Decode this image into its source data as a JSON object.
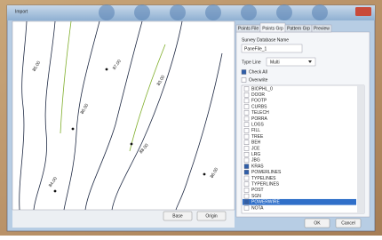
{
  "window": {
    "title": "Import"
  },
  "map": {
    "labels": [
      "85.00",
      "87.00",
      "86.00",
      "88.00",
      "84.00",
      "86.00",
      "83.00"
    ],
    "buttons": [
      "Base",
      "Origin"
    ]
  },
  "tabs": [
    "Points File",
    "Points Grp",
    "Pattern Grp",
    "Preview"
  ],
  "active_tab": 1,
  "form": {
    "survey_label": "Survey Database Name",
    "survey_value": "PaneFile_1",
    "type_label": "Type Line",
    "type_value": "Multi",
    "check_all": {
      "label": "Check All",
      "checked": true
    },
    "overwrite": {
      "label": "Overwrite",
      "checked": false
    }
  },
  "list": {
    "items": [
      {
        "label": "BIOPHL_0",
        "checked": false
      },
      {
        "label": "DOOR",
        "checked": false
      },
      {
        "label": "FOOTP",
        "checked": false
      },
      {
        "label": "CURBS",
        "checked": false
      },
      {
        "label": "TELECH",
        "checked": false
      },
      {
        "label": "PORRA",
        "checked": false
      },
      {
        "label": "LOGS",
        "checked": false
      },
      {
        "label": "FILL",
        "checked": false
      },
      {
        "label": "TREE",
        "checked": false
      },
      {
        "label": "BEH",
        "checked": false
      },
      {
        "label": "JCE",
        "checked": false
      },
      {
        "label": "LRG",
        "checked": false
      },
      {
        "label": "JBG",
        "checked": false
      },
      {
        "label": "KRAS",
        "checked": true
      },
      {
        "label": "POWERLINES",
        "checked": true
      },
      {
        "label": "TYPELINES",
        "checked": false
      },
      {
        "label": "TYPERLINES",
        "checked": false
      },
      {
        "label": "POST",
        "checked": false
      },
      {
        "label": "SGN",
        "checked": false
      },
      {
        "label": "POWERWIRE",
        "checked": true
      },
      {
        "label": "NOTA",
        "checked": false
      }
    ],
    "selected": 19
  },
  "buttons": [
    "OK",
    "Cancel"
  ]
}
